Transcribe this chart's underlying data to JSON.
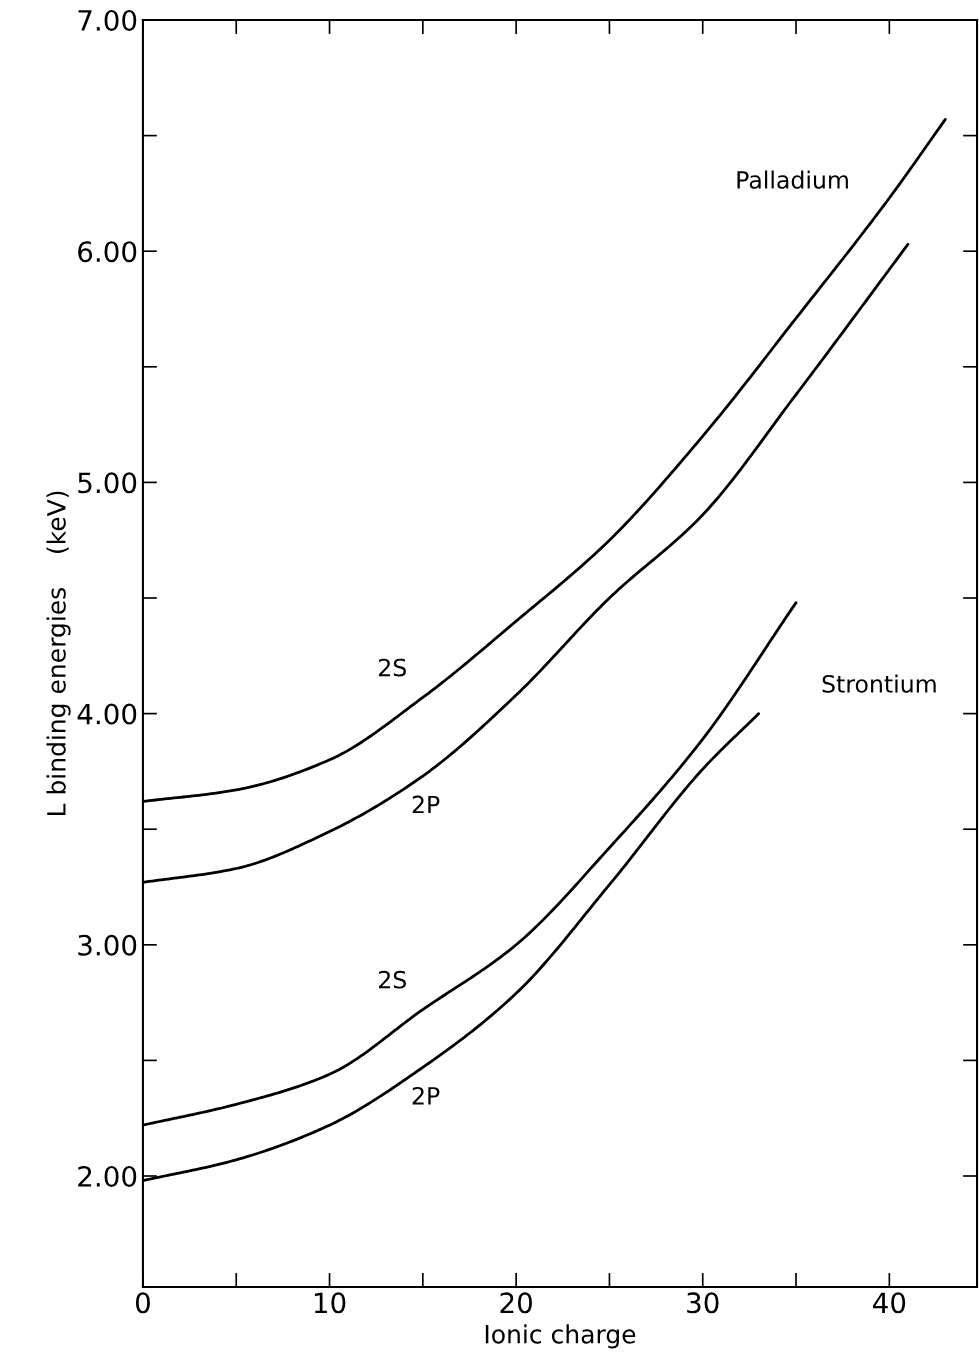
{
  "chart_data": {
    "type": "line",
    "xlabel": "Ionic charge",
    "ylabel": "L binding energies    (keV)",
    "xlim": [
      0,
      44.7
    ],
    "ylim": [
      1.52,
      7.0
    ],
    "xticks": [
      0,
      {
        "value": 5,
        "label": null
      },
      10,
      {
        "value": 15,
        "label": null
      },
      20,
      {
        "value": 25,
        "label": null
      },
      30,
      {
        "value": 35,
        "label": null
      },
      40
    ],
    "yticks": [
      {
        "value": 2,
        "label": "2.00"
      },
      {
        "value": 2.5,
        "label": null
      },
      {
        "value": 3,
        "label": "3.00"
      },
      {
        "value": 3.5,
        "label": null
      },
      {
        "value": 4,
        "label": "4.00"
      },
      {
        "value": 4.5,
        "label": null
      },
      {
        "value": 5,
        "label": "5.00"
      },
      {
        "value": 5.5,
        "label": null
      },
      {
        "value": 6,
        "label": "6.00"
      },
      {
        "value": 6.5,
        "label": null
      },
      {
        "value": 7,
        "label": "7.00"
      }
    ],
    "grid": false,
    "legend": false,
    "marker": "none",
    "line_style": "solid",
    "series": [
      {
        "name": "2S",
        "color": "#000000",
        "x": [
          0,
          5,
          10,
          15,
          20,
          25,
          30,
          35,
          40,
          43
        ],
        "values": [
          3.62,
          3.67,
          3.8,
          4.07,
          4.4,
          4.75,
          5.2,
          5.71,
          6.23,
          6.57
        ]
      },
      {
        "name": "2P",
        "color": "#000000",
        "x": [
          0,
          5,
          10,
          15,
          20,
          25,
          30,
          35,
          41
        ],
        "values": [
          3.27,
          3.33,
          3.49,
          3.73,
          4.08,
          4.5,
          4.86,
          5.38,
          6.03
        ]
      },
      {
        "name": "2S",
        "color": "#000000",
        "x": [
          0,
          5,
          10,
          15,
          20,
          25,
          30,
          35
        ],
        "values": [
          2.22,
          2.31,
          2.44,
          2.72,
          3.0,
          3.42,
          3.89,
          4.48
        ]
      },
      {
        "name": "2P",
        "color": "#000000",
        "x": [
          0,
          5,
          10,
          15,
          20,
          25,
          30,
          33
        ],
        "values": [
          1.98,
          2.07,
          2.22,
          2.47,
          2.79,
          3.26,
          3.76,
          4.0
        ]
      }
    ],
    "annotations": [
      "Palladium",
      "Strontium"
    ]
  }
}
